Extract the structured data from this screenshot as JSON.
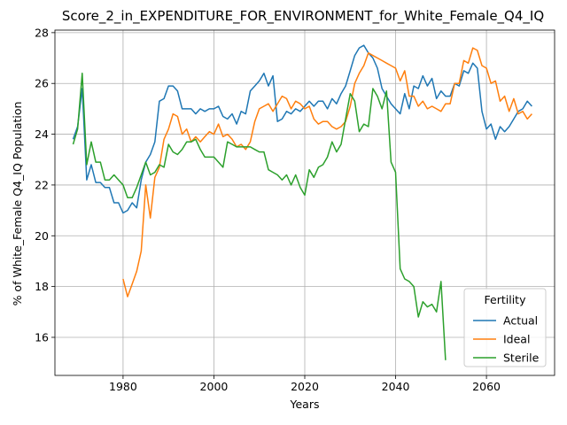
{
  "chart_data": {
    "type": "line",
    "title": "Score_2_in_EXPENDITURE_FOR_ENVIRONMENT_for_White_Female_Q4_IQ",
    "xlabel": "Years",
    "ylabel": "% of White_Female Q4_IQ Population",
    "xlim": [
      1965,
      2075
    ],
    "ylim": [
      14.5,
      28.1
    ],
    "xticks": [
      1980,
      2000,
      2020,
      2040,
      2060
    ],
    "yticks": [
      16,
      18,
      20,
      22,
      24,
      26,
      28
    ],
    "grid": true,
    "legend": {
      "title": "Fertility",
      "placement": "lower-right"
    },
    "series": [
      {
        "name": "Actual",
        "color": "#1f77b4",
        "x": [
          1969,
          1970,
          1971,
          1972,
          1973,
          1974,
          1975,
          1976,
          1977,
          1978,
          1979,
          1980,
          1981,
          1982,
          1983,
          1984,
          1985,
          1986,
          1987,
          1988,
          1989,
          1990,
          1991,
          1992,
          1993,
          1994,
          1995,
          1996,
          1997,
          1998,
          1999,
          2000,
          2001,
          2002,
          2003,
          2004,
          2005,
          2006,
          2007,
          2008,
          2009,
          2010,
          2011,
          2012,
          2013,
          2014,
          2015,
          2016,
          2017,
          2018,
          2019,
          2020,
          2021,
          2022,
          2023,
          2024,
          2025,
          2026,
          2027,
          2028,
          2029,
          2030,
          2031,
          2032,
          2033,
          2034,
          2035,
          2036,
          2037,
          2038,
          2039,
          2040,
          2041,
          2042,
          2043,
          2044,
          2045,
          2046,
          2047,
          2048,
          2049,
          2050,
          2051,
          2052,
          2053,
          2054,
          2055,
          2056,
          2057,
          2058,
          2059,
          2060,
          2061,
          2062,
          2063,
          2064,
          2065,
          2066,
          2067,
          2068,
          2069,
          2070
        ],
        "values": [
          23.8,
          24.3,
          25.8,
          22.2,
          22.8,
          22.1,
          22.1,
          21.9,
          21.9,
          21.3,
          21.3,
          20.9,
          21.0,
          21.3,
          21.1,
          22.2,
          22.9,
          23.2,
          23.7,
          25.3,
          25.4,
          25.9,
          25.9,
          25.7,
          25.0,
          25.0,
          25.0,
          24.8,
          25.0,
          24.9,
          25.0,
          25.0,
          25.1,
          24.7,
          24.6,
          24.8,
          24.4,
          24.9,
          24.8,
          25.7,
          25.9,
          26.1,
          26.4,
          25.9,
          26.3,
          24.5,
          24.6,
          24.9,
          24.8,
          25.0,
          24.9,
          25.1,
          25.3,
          25.1,
          25.3,
          25.3,
          25.0,
          25.4,
          25.2,
          25.6,
          25.9,
          26.5,
          27.1,
          27.4,
          27.5,
          27.2,
          27.0,
          26.6,
          25.8,
          25.5,
          25.2,
          25.0,
          24.8,
          25.6,
          25.0,
          25.9,
          25.8,
          26.3,
          25.9,
          26.2,
          25.4,
          25.7,
          25.5,
          25.5,
          26.0,
          25.9,
          26.5,
          26.4,
          26.8,
          26.6,
          24.9,
          24.2,
          24.4,
          23.8,
          24.3,
          24.1,
          24.3,
          24.6,
          24.9,
          25.0,
          25.3,
          25.1
        ]
      },
      {
        "name": "Ideal",
        "color": "#ff7f0e",
        "x": [
          1980,
          1981,
          1982,
          1983,
          1984,
          1985,
          1986,
          1987,
          1988,
          1989,
          1990,
          1991,
          1992,
          1993,
          1994,
          1995,
          1996,
          1997,
          1998,
          1999,
          2000,
          2001,
          2002,
          2003,
          2004,
          2005,
          2006,
          2007,
          2008,
          2009,
          2010,
          2011,
          2012,
          2013,
          2014,
          2015,
          2016,
          2017,
          2018,
          2019,
          2020,
          2021,
          2022,
          2023,
          2024,
          2025,
          2026,
          2027,
          2028,
          2029,
          2030,
          2031,
          2032,
          2033,
          2034,
          2035,
          2036,
          2037,
          2038,
          2039,
          2040,
          2041,
          2042,
          2043,
          2044,
          2045,
          2046,
          2047,
          2048,
          2049,
          2050,
          2051,
          2052,
          2053,
          2054,
          2055,
          2056,
          2057,
          2058,
          2059,
          2060,
          2061,
          2062,
          2063,
          2064,
          2065,
          2066,
          2067,
          2068,
          2069,
          2070
        ],
        "values": [
          18.3,
          17.6,
          18.1,
          18.6,
          19.4,
          22.0,
          20.7,
          22.3,
          22.7,
          23.8,
          24.2,
          24.8,
          24.7,
          24.0,
          24.2,
          23.7,
          23.9,
          23.7,
          23.9,
          24.1,
          24.0,
          24.4,
          23.9,
          24.0,
          23.8,
          23.5,
          23.6,
          23.4,
          23.7,
          24.5,
          25.0,
          25.1,
          25.2,
          24.9,
          25.2,
          25.5,
          25.4,
          25.0,
          25.3,
          25.2,
          25.0,
          25.1,
          24.6,
          24.4,
          24.5,
          24.5,
          24.3,
          24.2,
          24.3,
          24.5,
          25.1,
          26.0,
          26.4,
          26.7,
          27.2,
          27.1,
          27.0,
          26.9,
          26.8,
          26.7,
          26.6,
          26.1,
          26.5,
          25.5,
          25.5,
          25.1,
          25.3,
          25.0,
          25.1,
          25.0,
          24.9,
          25.2,
          25.2,
          26.0,
          26.0,
          26.9,
          26.8,
          27.4,
          27.3,
          26.7,
          26.6,
          26.0,
          26.1,
          25.3,
          25.5,
          24.9,
          25.4,
          24.8,
          24.9,
          24.6,
          24.8
        ]
      },
      {
        "name": "Sterile",
        "color": "#2ca02c",
        "x": [
          1969,
          1970,
          1971,
          1972,
          1973,
          1974,
          1975,
          1976,
          1977,
          1978,
          1979,
          1980,
          1981,
          1982,
          1983,
          1984,
          1985,
          1986,
          1987,
          1988,
          1989,
          1990,
          1991,
          1992,
          1993,
          1994,
          1995,
          1996,
          1997,
          1998,
          1999,
          2000,
          2001,
          2002,
          2003,
          2004,
          2005,
          2006,
          2007,
          2008,
          2009,
          2010,
          2011,
          2012,
          2013,
          2014,
          2015,
          2016,
          2017,
          2018,
          2019,
          2020,
          2021,
          2022,
          2023,
          2024,
          2025,
          2026,
          2027,
          2028,
          2029,
          2030,
          2031,
          2032,
          2033,
          2034,
          2035,
          2036,
          2037,
          2038,
          2039,
          2040,
          2041,
          2042,
          2043,
          2044,
          2045,
          2046,
          2047,
          2048,
          2049,
          2050,
          2051
        ],
        "values": [
          23.6,
          24.2,
          26.4,
          22.8,
          23.7,
          22.9,
          22.9,
          22.2,
          22.2,
          22.4,
          22.2,
          22.0,
          21.5,
          21.5,
          21.9,
          22.4,
          22.9,
          22.4,
          22.5,
          22.8,
          22.7,
          23.6,
          23.3,
          23.2,
          23.4,
          23.7,
          23.7,
          23.8,
          23.4,
          23.1,
          23.1,
          23.1,
          22.9,
          22.7,
          23.7,
          23.6,
          23.5,
          23.5,
          23.5,
          23.5,
          23.4,
          23.3,
          23.3,
          22.6,
          22.5,
          22.4,
          22.2,
          22.4,
          22.0,
          22.4,
          21.9,
          21.6,
          22.6,
          22.3,
          22.7,
          22.8,
          23.1,
          23.7,
          23.3,
          23.6,
          24.6,
          25.6,
          25.3,
          24.1,
          24.4,
          24.3,
          25.8,
          25.5,
          25.0,
          25.7,
          22.9,
          22.5,
          18.7,
          18.3,
          18.2,
          18.0,
          16.8,
          17.4,
          17.2,
          17.3,
          17.0,
          18.2,
          15.1
        ]
      }
    ]
  }
}
